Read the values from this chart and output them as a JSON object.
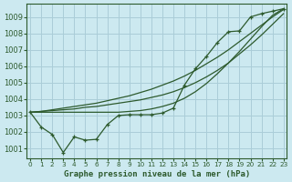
{
  "title": "Graphe pression niveau de la mer (hPa)",
  "ylabel_ticks": [
    1001,
    1002,
    1003,
    1004,
    1005,
    1006,
    1007,
    1008,
    1009
  ],
  "xlim": [
    -0.3,
    23.3
  ],
  "ylim": [
    1000.4,
    1009.8
  ],
  "bg_color": "#cce9f0",
  "grid_color": "#aacdd8",
  "line_color": "#2d5a2d",
  "series_zigzag": [
    1003.2,
    1002.3,
    1001.85,
    1000.75,
    1001.7,
    1001.5,
    1001.55,
    1002.45,
    1003.0,
    1003.05,
    1003.05,
    1003.05,
    1003.15,
    1003.45,
    1004.85,
    1005.85,
    1006.6,
    1007.45,
    1008.1,
    1008.15,
    1009.0,
    1009.2,
    1009.35,
    1009.5
  ],
  "series_straight1": [
    1003.2,
    1003.2,
    1003.2,
    1003.2,
    1003.2,
    1003.2,
    1003.2,
    1003.2,
    1003.2,
    1003.25,
    1003.3,
    1003.4,
    1003.55,
    1003.75,
    1004.05,
    1004.45,
    1004.95,
    1005.55,
    1006.2,
    1006.9,
    1007.65,
    1008.4,
    1009.1,
    1009.5
  ],
  "series_straight2": [
    1003.2,
    1003.25,
    1003.3,
    1003.35,
    1003.4,
    1003.5,
    1003.55,
    1003.65,
    1003.75,
    1003.85,
    1003.95,
    1004.1,
    1004.25,
    1004.45,
    1004.7,
    1005.0,
    1005.35,
    1005.75,
    1006.2,
    1006.75,
    1007.3,
    1007.9,
    1008.55,
    1009.2
  ],
  "series_straight3": [
    1003.2,
    1003.25,
    1003.35,
    1003.45,
    1003.55,
    1003.65,
    1003.75,
    1003.9,
    1004.05,
    1004.2,
    1004.4,
    1004.6,
    1004.85,
    1005.1,
    1005.4,
    1005.75,
    1006.15,
    1006.55,
    1007.0,
    1007.5,
    1008.0,
    1008.5,
    1009.0,
    1009.45
  ],
  "xtick_labels": [
    "0",
    "1",
    "2",
    "3",
    "4",
    "5",
    "6",
    "7",
    "8",
    "9",
    "10",
    "11",
    "12",
    "13",
    "14",
    "15",
    "16",
    "17",
    "18",
    "19",
    "20",
    "21",
    "22",
    "23"
  ]
}
